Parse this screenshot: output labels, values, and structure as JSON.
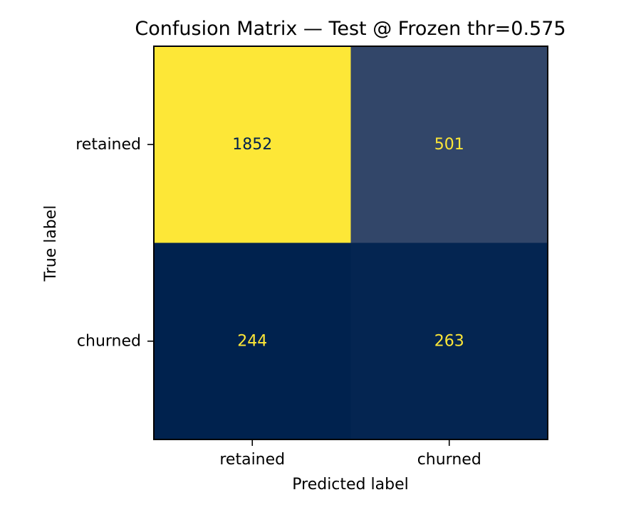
{
  "chart_data": {
    "type": "heatmap",
    "title": "Confusion Matrix — Test @ Frozen thr=0.575",
    "xlabel": "Predicted label",
    "ylabel": "True label",
    "x_categories": [
      "retained",
      "churned"
    ],
    "y_categories": [
      "retained",
      "churned"
    ],
    "values": [
      [
        1852,
        501
      ],
      [
        244,
        263
      ]
    ],
    "colormap": "cividis",
    "colors": {
      "low": "#00224e",
      "mid": "#273d6c",
      "high": "#fde737",
      "text_on_light": "#00224e",
      "text_on_dark": "#fde737"
    },
    "colorbar": false,
    "grid": false
  }
}
